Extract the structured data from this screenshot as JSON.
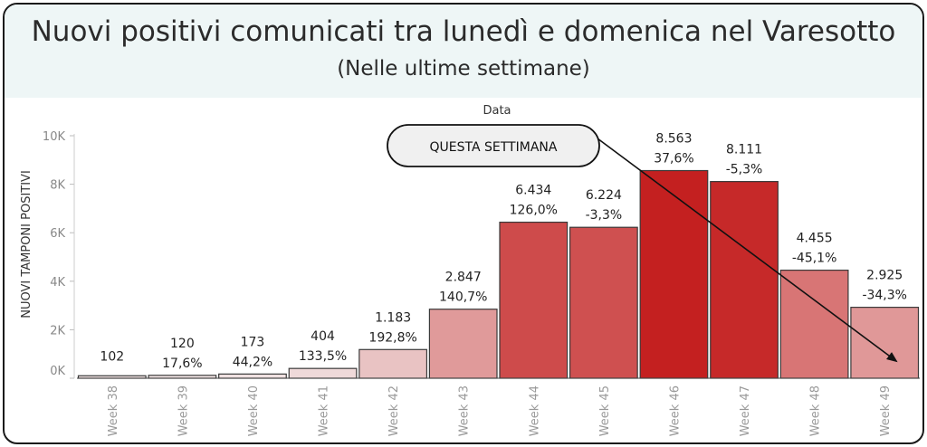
{
  "title": "Nuovi positivi comunicati tra lunedì e domenica nel Varesotto",
  "subtitle": "(Nelle ultime settimane)",
  "annotation_label": "QUESTA SETTIMANA",
  "chart_data": {
    "type": "bar",
    "xlabel": "Data",
    "ylabel": "NUOVI TAMPONI POSITIVI",
    "ylim": [
      0,
      10000
    ],
    "yticks": [
      0,
      2000,
      4000,
      6000,
      8000,
      10000
    ],
    "ytick_labels": [
      "0K",
      "2K",
      "4K",
      "6K",
      "8K",
      "10K"
    ],
    "categories": [
      "Week 38",
      "Week 39",
      "Week 40",
      "Week 41",
      "Week 42",
      "Week 43",
      "Week 44",
      "Week 45",
      "Week 46",
      "Week 47",
      "Week 48",
      "Week 49"
    ],
    "values": [
      102,
      120,
      173,
      404,
      1183,
      2847,
      6434,
      6224,
      8563,
      8111,
      4455,
      2925
    ],
    "value_labels": [
      "102",
      "120",
      "173",
      "404",
      "1.183",
      "2.847",
      "6.434",
      "6.224",
      "8.563",
      "8.111",
      "4.455",
      "2.925"
    ],
    "pct_change_labels": [
      "",
      "17,6%",
      "44,2%",
      "133,5%",
      "192,8%",
      "140,7%",
      "126,0%",
      "-3,3%",
      "37,6%",
      "-5,3%",
      "-45,1%",
      "-34,3%"
    ],
    "grid": false,
    "color_low": "#f2e8e8",
    "color_high": "#c42020"
  }
}
